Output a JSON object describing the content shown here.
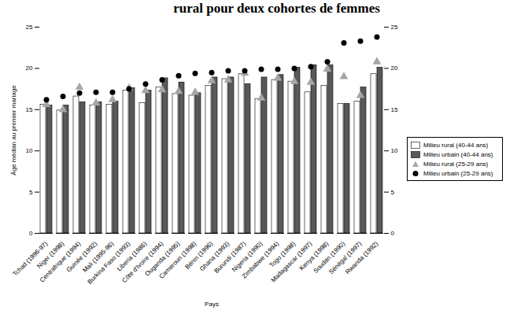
{
  "chart_data": {
    "type": "bar",
    "title": "rural pour deux cohortes de femmes",
    "x_label": "Pays",
    "y_label": "Âge médian au premier mariage",
    "categories": [
      "Tchad (1996-97)",
      "Niger (1998)",
      "Centrafrique (1994)",
      "Guinée (1992)",
      "Mali (1995-96)",
      "Burkina Faso (1993)",
      "Liberia (1986)",
      "Côte d'Ivoire (1994)",
      "Ouganda (1995)",
      "Cameroun (1998)",
      "Bénin (1996)",
      "Ghana (1993)",
      "Burundi (1987)",
      "Nigeria (1990)",
      "Zimbabwe (1994)",
      "Togo (1998)",
      "Madagascar (1997)",
      "Kenya (1998)",
      "Soudan (1990)",
      "Sénégal (1997)",
      "Rwanda (1992)"
    ],
    "series": [
      {
        "name": "Milieu rural (40-44 ans)",
        "type": "bar",
        "color": "#ffffff",
        "values": [
          15.6,
          14.9,
          16.6,
          15.5,
          15.6,
          17.3,
          15.8,
          17.7,
          16.9,
          16.7,
          17.9,
          18.7,
          19.3,
          16.3,
          18.6,
          18.4,
          17.1,
          17.9,
          15.7,
          16.0,
          19.3
        ]
      },
      {
        "name": "Milieu urbain (40-44 ans)",
        "type": "bar",
        "color": "#595959",
        "values": [
          15.5,
          15.5,
          15.9,
          15.9,
          16.0,
          17.6,
          17.3,
          18.8,
          18.3,
          17.0,
          18.9,
          18.9,
          18.1,
          18.9,
          19.2,
          20.1,
          20.4,
          20.4,
          15.7,
          17.7,
          20.1
        ]
      },
      {
        "name": "Milieu rural (25-29 ans)",
        "type": "scatter",
        "color": "#a6a6a6",
        "marker": "triangle",
        "values": [
          15.6,
          15.0,
          17.7,
          15.8,
          16.2,
          17.6,
          17.3,
          17.4,
          17.2,
          17.1,
          18.5,
          18.6,
          19.4,
          16.4,
          18.8,
          18.4,
          18.3,
          19.9,
          19.0,
          16.7,
          20.8
        ]
      },
      {
        "name": "Milieu urbain (25-29 ans)",
        "type": "scatter",
        "color": "#000000",
        "marker": "circle",
        "values": [
          16.2,
          16.6,
          17.0,
          17.1,
          17.1,
          17.5,
          18.1,
          18.6,
          19.1,
          19.4,
          19.5,
          19.7,
          19.7,
          19.9,
          19.9,
          20.0,
          20.2,
          20.8,
          23.1,
          23.3,
          23.8
        ]
      }
    ],
    "ylim": [
      0,
      25
    ],
    "yticks": [
      0,
      5,
      10,
      15,
      20,
      25
    ],
    "legend": "right",
    "grid": false
  }
}
